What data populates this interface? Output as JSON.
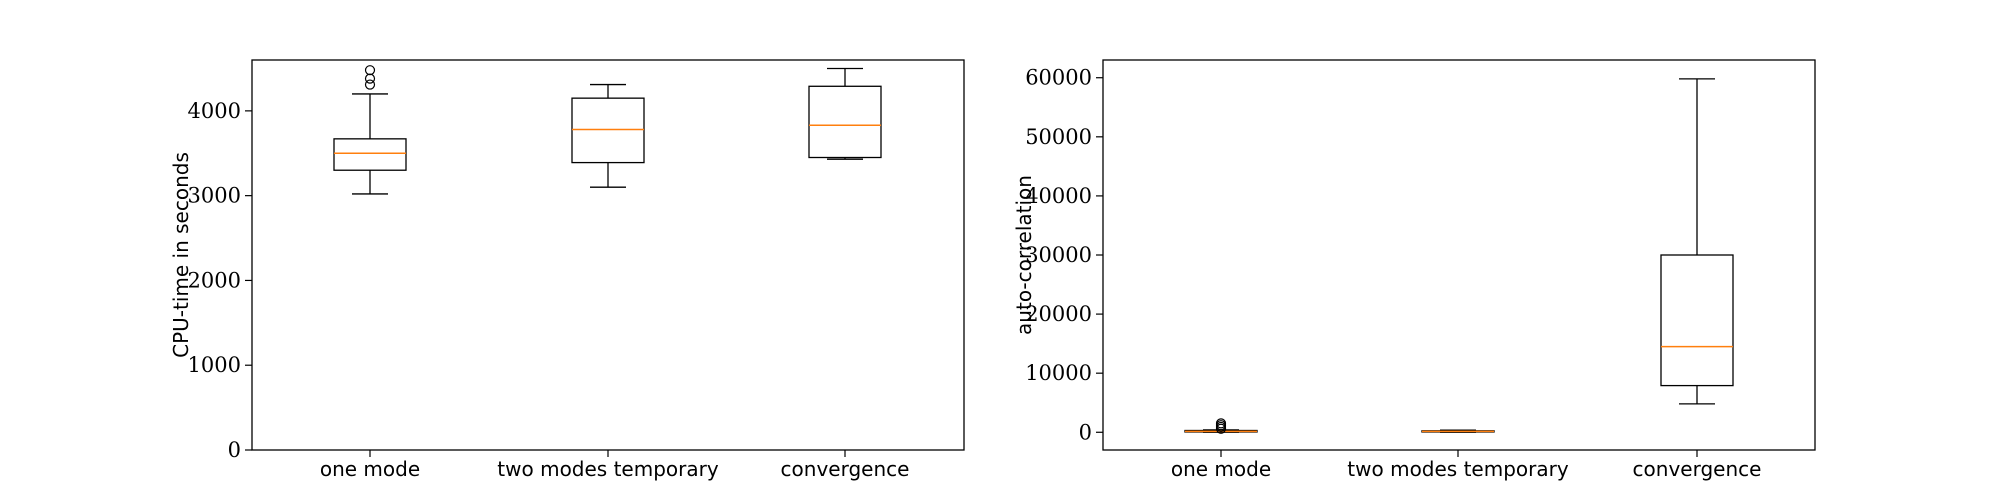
{
  "chart_data": [
    {
      "type": "box",
      "title": "",
      "xlabel": "",
      "ylabel": "CPU-time in seconds",
      "ylim": [
        0,
        4600
      ],
      "yticks": [
        0,
        1000,
        2000,
        3000,
        4000
      ],
      "ytick_labels": [
        "0",
        "1000",
        "2000",
        "3000",
        "4000"
      ],
      "categories": [
        "one mode",
        "two modes temporary",
        "convergence"
      ],
      "boxes": [
        {
          "whisker_low": 3020,
          "q1": 3300,
          "median": 3500,
          "q3": 3670,
          "whisker_high": 4200,
          "outliers": [
            4310,
            4380,
            4480
          ]
        },
        {
          "whisker_low": 3100,
          "q1": 3390,
          "median": 3780,
          "q3": 4150,
          "whisker_high": 4310,
          "outliers": []
        },
        {
          "whisker_low": 3430,
          "q1": 3450,
          "median": 3830,
          "q3": 4290,
          "whisker_high": 4500,
          "outliers": []
        }
      ],
      "colors": {
        "box": "#000000",
        "median": "#ff7f0e"
      },
      "grid": false
    },
    {
      "type": "box",
      "title": "",
      "xlabel": "",
      "ylabel": "auto-correlation",
      "ylim": [
        -3000,
        63000
      ],
      "yticks": [
        0,
        10000,
        20000,
        30000,
        40000,
        50000,
        60000
      ],
      "ytick_labels": [
        "0",
        "10000",
        "20000",
        "30000",
        "40000",
        "50000",
        "60000"
      ],
      "categories": [
        "one mode",
        "two modes temporary",
        "convergence"
      ],
      "boxes": [
        {
          "whisker_low": 0,
          "q1": 50,
          "median": 150,
          "q3": 300,
          "whisker_high": 400,
          "outliers": [
            600,
            900,
            1200,
            1500
          ]
        },
        {
          "whisker_low": 0,
          "q1": 50,
          "median": 150,
          "q3": 250,
          "whisker_high": 350,
          "outliers": []
        },
        {
          "whisker_low": 4800,
          "q1": 7900,
          "median": 14500,
          "q3": 30000,
          "whisker_high": 59800,
          "outliers": []
        }
      ],
      "colors": {
        "box": "#000000",
        "median": "#ff7f0e"
      },
      "grid": false
    }
  ]
}
